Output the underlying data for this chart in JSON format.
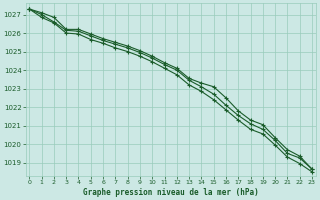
{
  "title": "Graphe pression niveau de la mer (hPa)",
  "background_color": "#cce8e4",
  "grid_color": "#99ccbb",
  "line_color": "#1a5c2a",
  "xlim": [
    -0.3,
    23.3
  ],
  "ylim": [
    1018.3,
    1027.6
  ],
  "yticks": [
    1019,
    1020,
    1021,
    1022,
    1023,
    1024,
    1025,
    1026,
    1027
  ],
  "xticks": [
    0,
    1,
    2,
    3,
    4,
    5,
    6,
    7,
    8,
    9,
    10,
    11,
    12,
    13,
    14,
    15,
    16,
    17,
    18,
    19,
    20,
    21,
    22,
    23
  ],
  "line1": [
    1027.3,
    1027.1,
    1026.85,
    1026.2,
    1026.2,
    1025.95,
    1025.7,
    1025.5,
    1025.3,
    1025.05,
    1024.75,
    1024.4,
    1024.1,
    1023.55,
    1023.3,
    1023.1,
    1022.5,
    1021.8,
    1021.3,
    1021.05,
    1020.35,
    1019.7,
    1019.35,
    1018.65
  ],
  "line2": [
    1027.3,
    1027.0,
    1026.6,
    1026.15,
    1026.1,
    1025.85,
    1025.6,
    1025.4,
    1025.2,
    1024.95,
    1024.65,
    1024.3,
    1024.0,
    1023.45,
    1023.1,
    1022.7,
    1022.1,
    1021.55,
    1021.1,
    1020.8,
    1020.2,
    1019.5,
    1019.25,
    1018.65
  ],
  "line3": [
    1027.3,
    1026.85,
    1026.55,
    1026.0,
    1025.95,
    1025.65,
    1025.45,
    1025.2,
    1025.0,
    1024.75,
    1024.45,
    1024.1,
    1023.75,
    1023.2,
    1022.85,
    1022.4,
    1021.85,
    1021.3,
    1020.8,
    1020.55,
    1019.95,
    1019.3,
    1018.95,
    1018.5
  ]
}
